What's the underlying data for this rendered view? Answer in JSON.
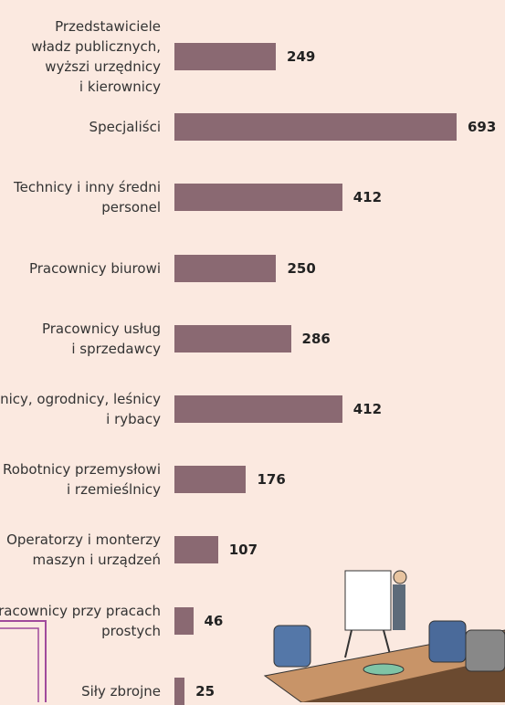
{
  "chart_data": {
    "type": "bar",
    "orientation": "horizontal",
    "color": "#8a6972",
    "categories": [
      "Przedstawiciele\nwładz publicznych,\nwyższi urzędnicy\ni kierownicy",
      "Specjaliści",
      "Technicy i inny średni\npersonel",
      "Pracownicy biurowi",
      "Pracownicy usług\ni sprzedawcy",
      "Rolnicy, ogrodnicy, leśnicy\ni rybacy",
      "Robotnicy przemysłowi\ni rzemieślnicy",
      "Operatorzy i monterzy\nmaszyn i urządzeń",
      "Pracownicy przy pracach\nprostych",
      "Siły zbrojne"
    ],
    "values": [
      249,
      693,
      412,
      250,
      286,
      412,
      176,
      107,
      46,
      25
    ]
  }
}
